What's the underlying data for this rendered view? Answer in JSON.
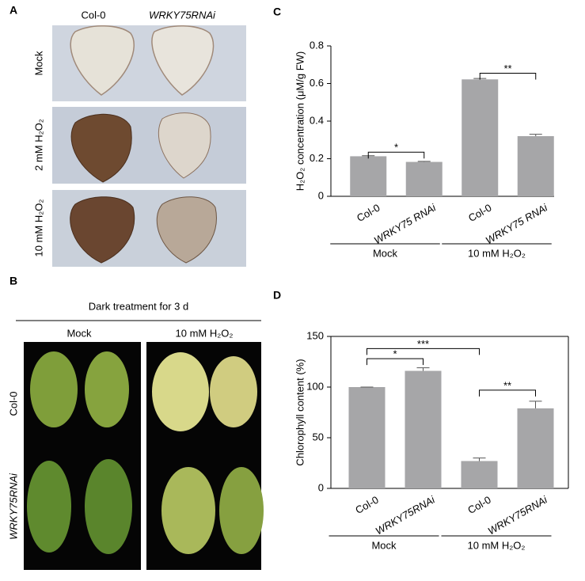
{
  "panels": {
    "A": {
      "label": "A",
      "columns": [
        "Col-0",
        "WRKY75RNAi"
      ],
      "rows": [
        "Mock",
        "2 mM H₂O₂",
        "10 mM H₂O₂"
      ]
    },
    "B": {
      "label": "B",
      "title": "Dark treatment for 3 d",
      "columns": [
        "Mock",
        "10 mM H₂O₂"
      ],
      "rows": [
        "Col-0",
        "WRKY75RNAi"
      ]
    },
    "C": {
      "label": "C"
    },
    "D": {
      "label": "D"
    }
  },
  "chart_data": [
    {
      "type": "bar",
      "ylabel": "H₂O₂ concentration (μM/g FW)",
      "categories": [
        "Col-0",
        "WRKY75 RNAi",
        "Col-0",
        "WRKY75 RNAi"
      ],
      "groups": [
        "Mock",
        "10 mM H₂O₂"
      ],
      "values": [
        0.213,
        0.183,
        0.622,
        0.32
      ],
      "errors": [
        0.003,
        0.003,
        0.005,
        0.01
      ],
      "color": "#a6a6a8",
      "ylim": [
        0,
        0.8
      ],
      "yticks": [
        0,
        0.2,
        0.4,
        0.6,
        0.8
      ],
      "annotations": [
        "*",
        "**"
      ],
      "frame": false
    },
    {
      "type": "bar",
      "ylabel": "Chlorophyll content (%)",
      "categories": [
        "Col-0",
        "WRKY75RNAi",
        "Col-0",
        "WRKY75RNAi"
      ],
      "groups": [
        "Mock",
        "10 mM H₂O₂"
      ],
      "values": [
        100,
        116,
        27,
        79
      ],
      "errors": [
        0,
        3,
        3,
        7
      ],
      "color": "#a6a6a8",
      "ylim": [
        0,
        150
      ],
      "yticks": [
        0,
        50,
        100,
        150
      ],
      "annotations": [
        "*",
        "***",
        "**"
      ],
      "frame": true
    }
  ]
}
